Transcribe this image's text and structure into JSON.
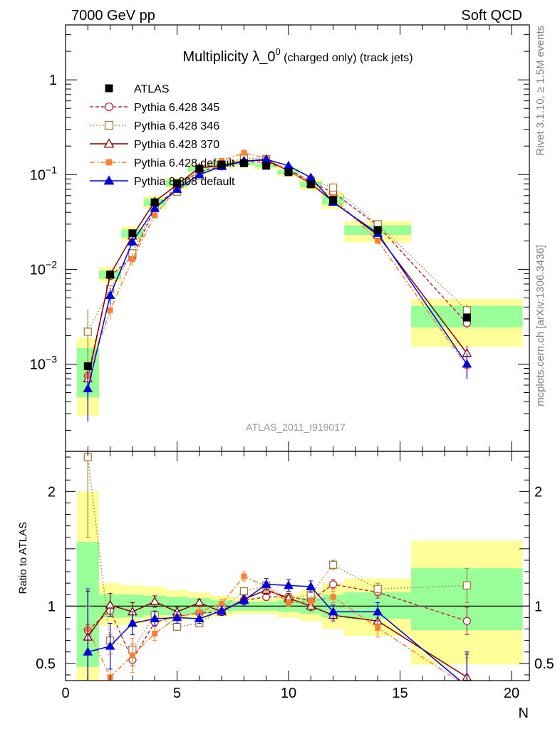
{
  "header": {
    "left": "7000 GeV pp",
    "right": "Soft QCD"
  },
  "side": {
    "top": "Rivet 3.1.10, ≥ 1.5M events",
    "bottom": "mcplots.cern.ch [arXiv:1306.3436]"
  },
  "chart_data": {
    "type": "line",
    "title_main": "Multiplicity λ_0",
    "title_sup": "0",
    "title_note": " (charged only) (track jets)",
    "watermark": "ATLAS_2011_I919017",
    "xlabel": "N",
    "ratio_ylabel": "Ratio to ATLAS",
    "xlim": [
      0,
      20.8
    ],
    "ylim_main": [
      0.00012,
      3.8
    ],
    "yscale_main": "log",
    "ylim_ratio": [
      0.35,
      2.35
    ],
    "x_ticks": [
      "0",
      "5",
      "10",
      "15",
      "20"
    ],
    "main_y_ticks": [
      {
        "v": 1,
        "base": "1",
        "exp": ""
      },
      {
        "v": 0.1,
        "base": "10",
        "exp": "−1"
      },
      {
        "v": 0.01,
        "base": "10",
        "exp": "−2"
      },
      {
        "v": 0.001,
        "base": "10",
        "exp": "−3"
      }
    ],
    "ratio_y_ticks": [
      "0.5",
      "1",
      "2"
    ],
    "legend_position": "upper-left",
    "data": {
      "name": "ATLAS",
      "color": "#000000",
      "x": [
        1,
        2,
        3,
        4,
        5,
        6,
        7,
        8,
        9,
        10,
        11,
        12,
        14,
        18
      ],
      "y": [
        0.00095,
        0.0088,
        0.024,
        0.051,
        0.081,
        0.115,
        0.128,
        0.132,
        0.124,
        0.106,
        0.079,
        0.054,
        0.026,
        0.0031
      ],
      "x_lo": [
        0.5,
        1.5,
        2.5,
        3.5,
        4.5,
        5.5,
        6.5,
        7.5,
        8.5,
        9.5,
        10.5,
        11.5,
        12.5,
        15.5
      ],
      "x_hi": [
        1.5,
        2.5,
        3.5,
        4.5,
        5.5,
        6.5,
        7.5,
        8.5,
        9.5,
        10.5,
        11.5,
        12.5,
        15.5,
        20.5
      ]
    },
    "bands": {
      "inner_color": "#99ff99",
      "outer_color": "#ffff99",
      "inner": [
        [
          0.47,
          1.56
        ],
        [
          0.9,
          1.1
        ],
        [
          0.9,
          1.1
        ],
        [
          0.92,
          1.09
        ],
        [
          0.92,
          1.08
        ],
        [
          0.93,
          1.07
        ],
        [
          0.95,
          1.05
        ],
        [
          0.96,
          1.04
        ],
        [
          0.96,
          1.04
        ],
        [
          0.95,
          1.05
        ],
        [
          0.93,
          1.07
        ],
        [
          0.9,
          1.1
        ],
        [
          0.89,
          1.12
        ],
        [
          0.79,
          1.33
        ]
      ],
      "outer": [
        [
          0.3,
          2.0
        ],
        [
          0.83,
          1.2
        ],
        [
          0.84,
          1.18
        ],
        [
          0.86,
          1.17
        ],
        [
          0.87,
          1.14
        ],
        [
          0.89,
          1.12
        ],
        [
          0.91,
          1.09
        ],
        [
          0.93,
          1.07
        ],
        [
          0.93,
          1.07
        ],
        [
          0.9,
          1.1
        ],
        [
          0.87,
          1.14
        ],
        [
          0.8,
          1.2
        ],
        [
          0.74,
          1.24
        ],
        [
          0.49,
          1.57
        ]
      ]
    },
    "series": [
      {
        "name": "Pythia 6.428 345",
        "color": "#b03040",
        "dash": "5,3",
        "marker": "circle-open",
        "x": [
          1,
          2,
          3,
          4,
          5,
          6,
          7,
          8,
          9,
          10,
          11,
          12,
          14,
          18
        ],
        "y": [
          0.00075,
          0.0085,
          0.0135,
          0.044,
          0.074,
          0.108,
          0.122,
          0.139,
          0.134,
          0.114,
          0.083,
          0.065,
          0.029,
          0.0027
        ],
        "ratio": [
          0.79,
          0.96,
          0.53,
          0.86,
          0.91,
          0.94,
          0.95,
          1.05,
          1.08,
          1.08,
          1.05,
          1.19,
          1.12,
          0.87
        ],
        "ratio_err": [
          0.05,
          0.05,
          0.05,
          0.04,
          0.03,
          0.03,
          0.03,
          0.03,
          0.03,
          0.03,
          0.03,
          0.04,
          0.05,
          0.12
        ]
      },
      {
        "name": "Pythia 6.428 346",
        "color": "#a08040",
        "dash": "1.5,3",
        "marker": "square-open",
        "x": [
          1,
          2,
          3,
          4,
          5,
          6,
          7,
          8,
          9,
          10,
          11,
          12,
          14,
          18
        ],
        "y": [
          0.0022,
          0.0062,
          0.0148,
          0.047,
          0.066,
          0.098,
          0.125,
          0.15,
          0.146,
          0.112,
          0.087,
          0.073,
          0.03,
          0.0037
        ],
        "ratio": [
          2.3,
          0.7,
          0.62,
          0.92,
          0.82,
          0.85,
          0.98,
          1.13,
          1.18,
          1.06,
          1.1,
          1.36,
          1.15,
          1.18
        ],
        "ratio_err": [
          0.7,
          0.05,
          0.05,
          0.04,
          0.03,
          0.03,
          0.03,
          0.03,
          0.03,
          0.03,
          0.03,
          0.04,
          0.05,
          0.15
        ]
      },
      {
        "name": "Pythia 6.428 370",
        "color": "#800000",
        "dash": "",
        "marker": "triangle-open",
        "x": [
          1,
          2,
          3,
          4,
          5,
          6,
          7,
          8,
          9,
          10,
          11,
          12,
          14,
          18
        ],
        "y": [
          0.0007,
          0.0088,
          0.0225,
          0.052,
          0.078,
          0.118,
          0.124,
          0.14,
          0.142,
          0.11,
          0.08,
          0.052,
          0.023,
          0.0013
        ],
        "ratio": [
          0.73,
          1.01,
          0.95,
          1.04,
          0.95,
          1.03,
          0.95,
          1.06,
          1.14,
          1.07,
          1.0,
          0.92,
          0.87,
          0.38
        ],
        "ratio_err": [
          0.4,
          0.1,
          0.08,
          0.05,
          0.04,
          0.03,
          0.03,
          0.03,
          0.04,
          0.04,
          0.04,
          0.05,
          0.06,
          0.2
        ]
      },
      {
        "name": "Pythia 6.428 default",
        "color": "#ff8030",
        "dash": "7,3,2,3",
        "marker": "square-filled",
        "x": [
          1,
          2,
          3,
          4,
          5,
          6,
          7,
          8,
          9,
          10,
          11,
          12,
          14,
          18
        ],
        "y": [
          0.00075,
          0.0037,
          0.0128,
          0.037,
          0.072,
          0.115,
          0.14,
          0.17,
          0.148,
          0.11,
          0.079,
          0.058,
          0.02,
          0.00095
        ],
        "ratio": [
          0.8,
          0.38,
          0.57,
          0.76,
          0.9,
          0.95,
          1.02,
          1.26,
          1.17,
          1.03,
          1.04,
          1.08,
          0.81,
          0.3
        ],
        "ratio_err": [
          0.2,
          0.2,
          0.15,
          0.06,
          0.05,
          0.04,
          0.04,
          0.04,
          0.04,
          0.03,
          0.04,
          0.05,
          0.08,
          0.25
        ]
      },
      {
        "name": "Pythia 8.308 default",
        "color": "#0000dd",
        "dash": "",
        "marker": "triangle-filled",
        "x": [
          1,
          2,
          3,
          4,
          5,
          6,
          7,
          8,
          9,
          10,
          11,
          12,
          14,
          18
        ],
        "y": [
          0.00055,
          0.0053,
          0.0195,
          0.044,
          0.07,
          0.1,
          0.122,
          0.138,
          0.145,
          0.124,
          0.093,
          0.051,
          0.024,
          0.001
        ],
        "ratio": [
          0.6,
          0.65,
          0.85,
          0.89,
          0.9,
          0.89,
          0.96,
          1.05,
          1.19,
          1.18,
          1.17,
          0.95,
          0.95,
          0.3
        ],
        "ratio_err": [
          0.55,
          0.2,
          0.1,
          0.06,
          0.05,
          0.04,
          0.04,
          0.04,
          0.05,
          0.05,
          0.05,
          0.06,
          0.08,
          0.3
        ]
      }
    ]
  }
}
